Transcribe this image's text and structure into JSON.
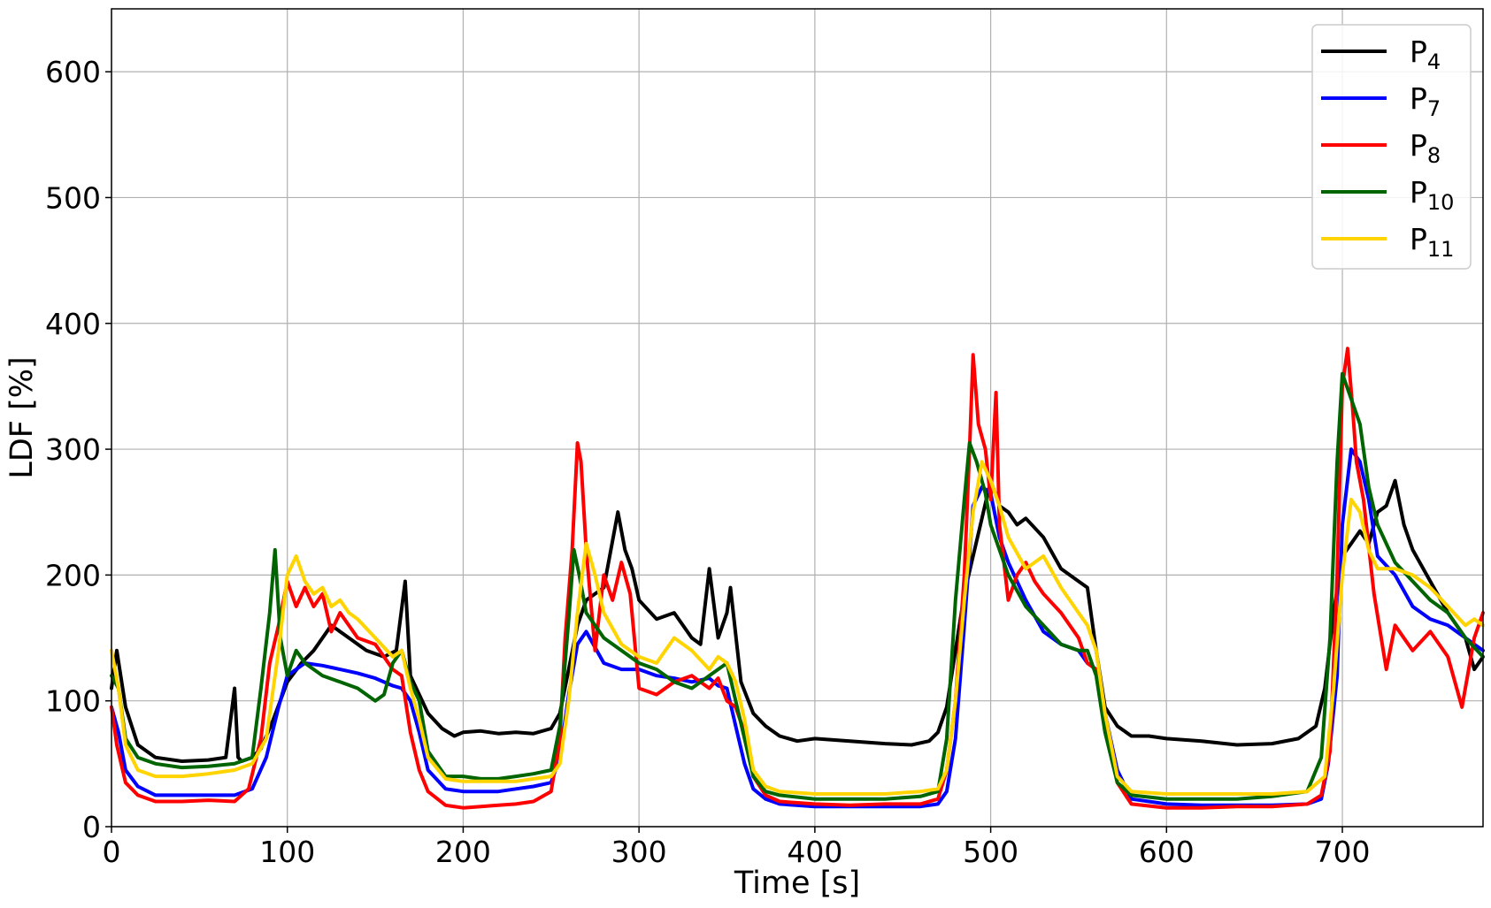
{
  "chart_data": {
    "type": "line",
    "title": "",
    "xlabel": "Time [s]",
    "ylabel": "LDF [%]",
    "xlim": [
      0,
      780
    ],
    "ylim": [
      0,
      650
    ],
    "xticks": [
      0,
      100,
      200,
      300,
      400,
      500,
      600,
      700
    ],
    "yticks": [
      0,
      100,
      200,
      300,
      400,
      500,
      600
    ],
    "grid": true,
    "legend_position": "top-right",
    "series": [
      {
        "name": "P",
        "subscript": "4",
        "color": "#000000",
        "x": [
          0,
          3,
          8,
          15,
          25,
          40,
          55,
          65,
          70,
          72,
          74,
          80,
          85,
          92,
          100,
          108,
          115,
          125,
          135,
          145,
          155,
          162,
          167,
          170,
          175,
          180,
          188,
          195,
          200,
          210,
          220,
          230,
          240,
          250,
          255,
          260,
          265,
          270,
          280,
          288,
          292,
          296,
          300,
          310,
          320,
          330,
          335,
          340,
          345,
          350,
          352,
          358,
          365,
          372,
          380,
          390,
          400,
          420,
          440,
          455,
          465,
          470,
          475,
          480,
          485,
          490,
          495,
          500,
          505,
          510,
          515,
          520,
          530,
          540,
          550,
          555,
          560,
          565,
          572,
          580,
          590,
          600,
          620,
          640,
          660,
          675,
          685,
          690,
          695,
          700,
          705,
          710,
          715,
          720,
          725,
          730,
          735,
          740,
          750,
          760,
          770,
          775,
          780
        ],
        "y": [
          110,
          140,
          95,
          65,
          55,
          52,
          53,
          55,
          110,
          55,
          52,
          55,
          62,
          85,
          115,
          130,
          140,
          160,
          150,
          140,
          135,
          140,
          195,
          120,
          105,
          90,
          78,
          72,
          75,
          76,
          74,
          75,
          74,
          78,
          90,
          125,
          160,
          180,
          190,
          250,
          220,
          205,
          180,
          165,
          170,
          150,
          145,
          205,
          150,
          170,
          190,
          115,
          90,
          80,
          72,
          68,
          70,
          68,
          66,
          65,
          68,
          75,
          95,
          140,
          185,
          215,
          245,
          275,
          255,
          250,
          240,
          245,
          230,
          205,
          195,
          190,
          140,
          95,
          80,
          72,
          72,
          70,
          68,
          65,
          66,
          70,
          80,
          110,
          170,
          215,
          225,
          235,
          225,
          250,
          255,
          275,
          240,
          220,
          195,
          170,
          150,
          125,
          135
        ]
      },
      {
        "name": "P",
        "subscript": "7",
        "color": "#0000ff",
        "x": [
          0,
          4,
          8,
          15,
          25,
          40,
          55,
          70,
          80,
          88,
          95,
          100,
          110,
          120,
          130,
          140,
          150,
          160,
          165,
          170,
          175,
          180,
          190,
          200,
          210,
          220,
          230,
          240,
          250,
          255,
          260,
          265,
          270,
          280,
          290,
          300,
          310,
          320,
          330,
          340,
          345,
          350,
          355,
          360,
          365,
          372,
          380,
          400,
          420,
          440,
          460,
          470,
          475,
          480,
          485,
          490,
          495,
          500,
          505,
          510,
          520,
          530,
          540,
          550,
          555,
          560,
          565,
          572,
          580,
          600,
          620,
          640,
          660,
          680,
          688,
          692,
          697,
          700,
          705,
          710,
          715,
          720,
          730,
          740,
          750,
          760,
          770,
          775,
          780
        ],
        "y": [
          95,
          75,
          45,
          32,
          25,
          25,
          25,
          25,
          30,
          55,
          95,
          120,
          130,
          128,
          125,
          122,
          118,
          112,
          110,
          100,
          75,
          45,
          30,
          28,
          28,
          28,
          30,
          32,
          35,
          55,
          105,
          145,
          155,
          130,
          125,
          125,
          120,
          118,
          115,
          118,
          112,
          110,
          80,
          50,
          30,
          22,
          18,
          16,
          16,
          16,
          16,
          18,
          28,
          70,
          160,
          255,
          270,
          265,
          230,
          210,
          180,
          155,
          145,
          140,
          130,
          125,
          90,
          45,
          22,
          18,
          17,
          17,
          17,
          18,
          22,
          50,
          120,
          240,
          300,
          290,
          260,
          215,
          200,
          175,
          165,
          160,
          150,
          145,
          140
        ]
      },
      {
        "name": "P",
        "subscript": "8",
        "color": "#ff0000",
        "x": [
          0,
          3,
          8,
          15,
          25,
          40,
          55,
          70,
          78,
          85,
          90,
          95,
          100,
          105,
          110,
          115,
          120,
          125,
          130,
          140,
          150,
          160,
          165,
          170,
          175,
          180,
          190,
          200,
          210,
          220,
          230,
          240,
          250,
          255,
          258,
          262,
          265,
          267,
          270,
          275,
          280,
          285,
          290,
          295,
          300,
          310,
          320,
          330,
          340,
          345,
          350,
          355,
          360,
          365,
          372,
          380,
          400,
          420,
          440,
          460,
          470,
          475,
          480,
          485,
          488,
          490,
          493,
          497,
          500,
          503,
          505,
          510,
          515,
          520,
          525,
          530,
          540,
          550,
          555,
          560,
          565,
          572,
          580,
          600,
          620,
          640,
          660,
          680,
          688,
          693,
          697,
          700,
          703,
          706,
          708,
          712,
          718,
          725,
          730,
          740,
          750,
          760,
          768,
          775,
          780
        ],
        "y": [
          95,
          65,
          35,
          25,
          20,
          20,
          21,
          20,
          30,
          70,
          130,
          160,
          195,
          175,
          190,
          175,
          185,
          155,
          170,
          150,
          145,
          125,
          120,
          75,
          45,
          28,
          17,
          15,
          16,
          17,
          18,
          20,
          28,
          70,
          150,
          220,
          305,
          290,
          220,
          140,
          200,
          180,
          210,
          185,
          110,
          105,
          115,
          120,
          110,
          118,
          100,
          95,
          75,
          40,
          25,
          20,
          18,
          17,
          18,
          18,
          22,
          45,
          100,
          200,
          300,
          375,
          320,
          300,
          260,
          345,
          240,
          180,
          200,
          210,
          195,
          185,
          170,
          150,
          130,
          125,
          80,
          35,
          18,
          15,
          15,
          16,
          16,
          18,
          25,
          60,
          200,
          350,
          380,
          330,
          290,
          260,
          185,
          125,
          160,
          140,
          155,
          135,
          95,
          150,
          170
        ]
      },
      {
        "name": "P",
        "subscript": "10",
        "color": "#006400",
        "x": [
          0,
          4,
          8,
          15,
          25,
          40,
          55,
          70,
          80,
          85,
          90,
          93,
          96,
          100,
          105,
          110,
          115,
          120,
          130,
          140,
          150,
          155,
          160,
          165,
          170,
          175,
          180,
          190,
          200,
          210,
          220,
          230,
          240,
          250,
          255,
          260,
          263,
          266,
          270,
          275,
          280,
          290,
          300,
          310,
          320,
          330,
          340,
          350,
          355,
          360,
          365,
          372,
          380,
          400,
          420,
          440,
          460,
          470,
          475,
          480,
          485,
          488,
          492,
          497,
          500,
          505,
          510,
          520,
          530,
          540,
          550,
          555,
          560,
          565,
          572,
          580,
          600,
          620,
          640,
          660,
          680,
          688,
          693,
          697,
          700,
          705,
          710,
          715,
          720,
          730,
          740,
          750,
          760,
          770,
          780
        ],
        "y": [
          120,
          110,
          70,
          55,
          50,
          47,
          48,
          50,
          55,
          110,
          170,
          220,
          150,
          120,
          140,
          130,
          125,
          120,
          115,
          110,
          100,
          105,
          130,
          140,
          115,
          100,
          60,
          40,
          40,
          38,
          38,
          40,
          42,
          45,
          80,
          165,
          220,
          200,
          170,
          160,
          150,
          140,
          130,
          125,
          115,
          110,
          120,
          130,
          100,
          70,
          40,
          28,
          25,
          22,
          22,
          22,
          24,
          28,
          70,
          180,
          260,
          305,
          290,
          265,
          240,
          220,
          200,
          175,
          160,
          145,
          140,
          140,
          120,
          75,
          35,
          25,
          22,
          22,
          22,
          24,
          28,
          55,
          150,
          290,
          360,
          340,
          320,
          270,
          240,
          210,
          195,
          180,
          170,
          150,
          135
        ]
      },
      {
        "name": "P",
        "subscript": "11",
        "color": "#ffd400",
        "x": [
          0,
          4,
          8,
          15,
          25,
          40,
          55,
          70,
          80,
          88,
          95,
          100,
          105,
          110,
          115,
          120,
          125,
          130,
          135,
          140,
          150,
          160,
          165,
          170,
          175,
          180,
          190,
          200,
          210,
          220,
          230,
          240,
          250,
          255,
          260,
          265,
          270,
          275,
          280,
          290,
          300,
          310,
          320,
          330,
          340,
          345,
          350,
          355,
          360,
          365,
          372,
          380,
          400,
          420,
          440,
          460,
          470,
          475,
          480,
          485,
          490,
          495,
          500,
          505,
          510,
          520,
          530,
          540,
          550,
          555,
          560,
          565,
          572,
          580,
          600,
          620,
          640,
          660,
          680,
          690,
          695,
          700,
          705,
          710,
          715,
          720,
          730,
          740,
          750,
          760,
          770,
          775,
          780
        ],
        "y": [
          140,
          110,
          65,
          45,
          40,
          40,
          42,
          45,
          50,
          70,
          140,
          200,
          215,
          195,
          185,
          190,
          175,
          180,
          170,
          165,
          150,
          135,
          140,
          110,
          85,
          55,
          38,
          36,
          36,
          36,
          36,
          38,
          40,
          50,
          100,
          170,
          225,
          200,
          170,
          145,
          135,
          130,
          150,
          140,
          125,
          135,
          130,
          115,
          85,
          45,
          32,
          28,
          26,
          26,
          26,
          28,
          30,
          45,
          100,
          180,
          250,
          290,
          275,
          255,
          230,
          205,
          215,
          190,
          170,
          160,
          140,
          90,
          40,
          28,
          26,
          26,
          26,
          26,
          28,
          40,
          110,
          200,
          260,
          250,
          220,
          205,
          205,
          200,
          190,
          175,
          160,
          165,
          160
        ]
      }
    ]
  }
}
